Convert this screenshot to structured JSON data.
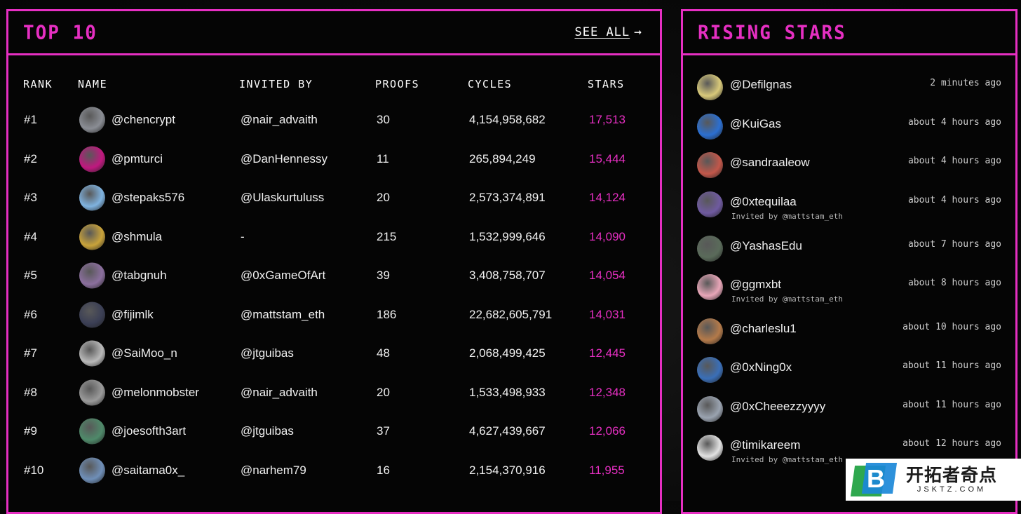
{
  "top10": {
    "title": "TOP 10",
    "see_all": "SEE ALL",
    "headers": {
      "rank": "RANK",
      "name": "NAME",
      "invited_by": "INVITED BY",
      "proofs": "PROOFS",
      "cycles": "CYCLES",
      "stars": "STARS"
    },
    "rows": [
      {
        "rank": "#1",
        "name": "@chencrypt",
        "invited_by": "@nair_advaith",
        "proofs": "30",
        "cycles": "4,154,958,682",
        "stars": "17,513",
        "avatar_color": "#8a8d94"
      },
      {
        "rank": "#2",
        "name": "@pmturci",
        "invited_by": "@DanHennessy",
        "proofs": "11",
        "cycles": "265,894,249",
        "stars": "15,444",
        "avatar_color": "#c0187f"
      },
      {
        "rank": "#3",
        "name": "@stepaks576",
        "invited_by": "@Ulaskurtuluss",
        "proofs": "20",
        "cycles": "2,573,374,891",
        "stars": "14,124",
        "avatar_color": "#7fb3e0"
      },
      {
        "rank": "#4",
        "name": "@shmula",
        "invited_by": "-",
        "proofs": "215",
        "cycles": "1,532,999,646",
        "stars": "14,090",
        "avatar_color": "#c9a33a"
      },
      {
        "rank": "#5",
        "name": "@tabgnuh",
        "invited_by": "@0xGameOfArt",
        "proofs": "39",
        "cycles": "3,408,758,707",
        "stars": "14,054",
        "avatar_color": "#8b6f9e"
      },
      {
        "rank": "#6",
        "name": "@fijimlk",
        "invited_by": "@mattstam_eth",
        "proofs": "186",
        "cycles": "22,682,605,791",
        "stars": "14,031",
        "avatar_color": "#3b3f55"
      },
      {
        "rank": "#7",
        "name": "@SaiMoo_n",
        "invited_by": "@jtguibas",
        "proofs": "48",
        "cycles": "2,068,499,425",
        "stars": "12,445",
        "avatar_color": "#b9b9b9"
      },
      {
        "rank": "#8",
        "name": "@melonmobster",
        "invited_by": "@nair_advaith",
        "proofs": "20",
        "cycles": "1,533,498,933",
        "stars": "12,348",
        "avatar_color": "#9a9a9a"
      },
      {
        "rank": "#9",
        "name": "@joesofth3art",
        "invited_by": "@jtguibas",
        "proofs": "37",
        "cycles": "4,627,439,667",
        "stars": "12,066",
        "avatar_color": "#4f8a6a"
      },
      {
        "rank": "#10",
        "name": "@saitama0x_",
        "invited_by": "@narhem79",
        "proofs": "16",
        "cycles": "2,154,370,916",
        "stars": "11,955",
        "avatar_color": "#6f8fb8"
      }
    ]
  },
  "rising": {
    "title": "RISING STARS",
    "items": [
      {
        "name": "@Defilgnas",
        "time": "2 minutes ago",
        "invited": "",
        "avatar_color": "#d8c97a"
      },
      {
        "name": "@KuiGas",
        "time": "about 4 hours ago",
        "invited": "",
        "avatar_color": "#2b6fd1"
      },
      {
        "name": "@sandraaleow",
        "time": "about 4 hours ago",
        "invited": "",
        "avatar_color": "#c2574a"
      },
      {
        "name": "@0xtequilaa",
        "time": "about 4 hours ago",
        "invited": "Invited by @mattstam_eth",
        "avatar_color": "#6f5aa0"
      },
      {
        "name": "@YashasEdu",
        "time": "about 7 hours ago",
        "invited": "",
        "avatar_color": "#5a6b5a"
      },
      {
        "name": "@ggmxbt",
        "time": "about 8 hours ago",
        "invited": "Invited by @mattstam_eth",
        "avatar_color": "#e8a6b8"
      },
      {
        "name": "@charleslu1",
        "time": "about 10 hours ago",
        "invited": "",
        "avatar_color": "#b47a4a"
      },
      {
        "name": "@0xNing0x",
        "time": "about 11 hours ago",
        "invited": "",
        "avatar_color": "#3a6fb8"
      },
      {
        "name": "@0xCheeezzyyyy",
        "time": "about 11 hours ago",
        "invited": "",
        "avatar_color": "#9aa3b0"
      },
      {
        "name": "@timikareem",
        "time": "about 12 hours ago",
        "invited": "Invited by @mattstam_eth",
        "avatar_color": "#e2e2e2"
      }
    ]
  },
  "watermark": {
    "logo_letter": "B",
    "cn": "开拓者奇点",
    "url": "JSKTZ.COM"
  }
}
